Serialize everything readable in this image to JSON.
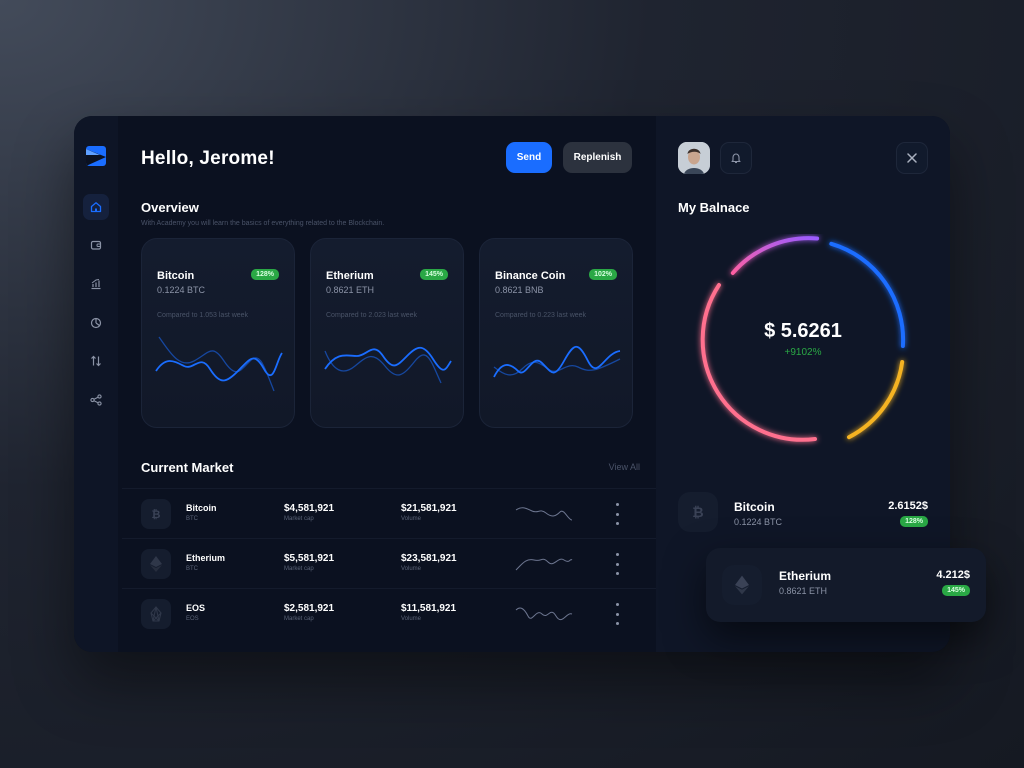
{
  "header": {
    "greeting": "Hello, Jerome!",
    "send_label": "Send",
    "replenish_label": "Replenish"
  },
  "overview": {
    "title": "Overview",
    "subtitle": "With Academy you will learn the basics of everything related to the Blockchain.",
    "cards": [
      {
        "name": "Bitcoin",
        "amount": "0.1224 BTC",
        "badge": "128%",
        "compare": "Compared to 1.053 last week"
      },
      {
        "name": "Etherium",
        "amount": "0.8621 ETH",
        "badge": "145%",
        "compare": "Compared to 2.023 last week"
      },
      {
        "name": "Binance Coin",
        "amount": "0.8621 BNB",
        "badge": "102%",
        "compare": "Compared to 0.223 last week"
      }
    ]
  },
  "market": {
    "title": "Current Market",
    "view_all": "View All",
    "rows": [
      {
        "name": "Bitcoin",
        "symbol": "BTC",
        "cap": "$4,581,921",
        "cap_label": "Market cap",
        "volume": "$21,581,921",
        "volume_label": "Volume"
      },
      {
        "name": "Etherium",
        "symbol": "BTC",
        "cap": "$5,581,921",
        "cap_label": "Market cap",
        "volume": "$23,581,921",
        "volume_label": "Volume"
      },
      {
        "name": "EOS",
        "symbol": "EOS",
        "cap": "$2,581,921",
        "cap_label": "Market cap",
        "volume": "$11,581,921",
        "volume_label": "Volume"
      }
    ]
  },
  "balance": {
    "title": "My Balnace",
    "amount": "$ 5.6261",
    "change": "+9102%",
    "holdings": [
      {
        "name": "Bitcoin",
        "amount": "0.1224 BTC",
        "value": "2.6152$",
        "badge": "128%"
      },
      {
        "name": "Etherium",
        "amount": "0.8621 ETH",
        "value": "4.212$",
        "badge": "145%"
      }
    ]
  },
  "icons": {
    "sidebar": [
      "home-icon",
      "wallet-icon",
      "chart-icon",
      "pie-icon",
      "exchange-icon",
      "share-icon"
    ],
    "top_right": [
      "avatar",
      "bell-icon",
      "close-icon"
    ]
  },
  "colors": {
    "accent": "#1a6dff",
    "positive": "#2aa845",
    "ring_segments": [
      "#b45cff",
      "#1a6dff",
      "#f5b323",
      "#ff6f8e"
    ]
  }
}
